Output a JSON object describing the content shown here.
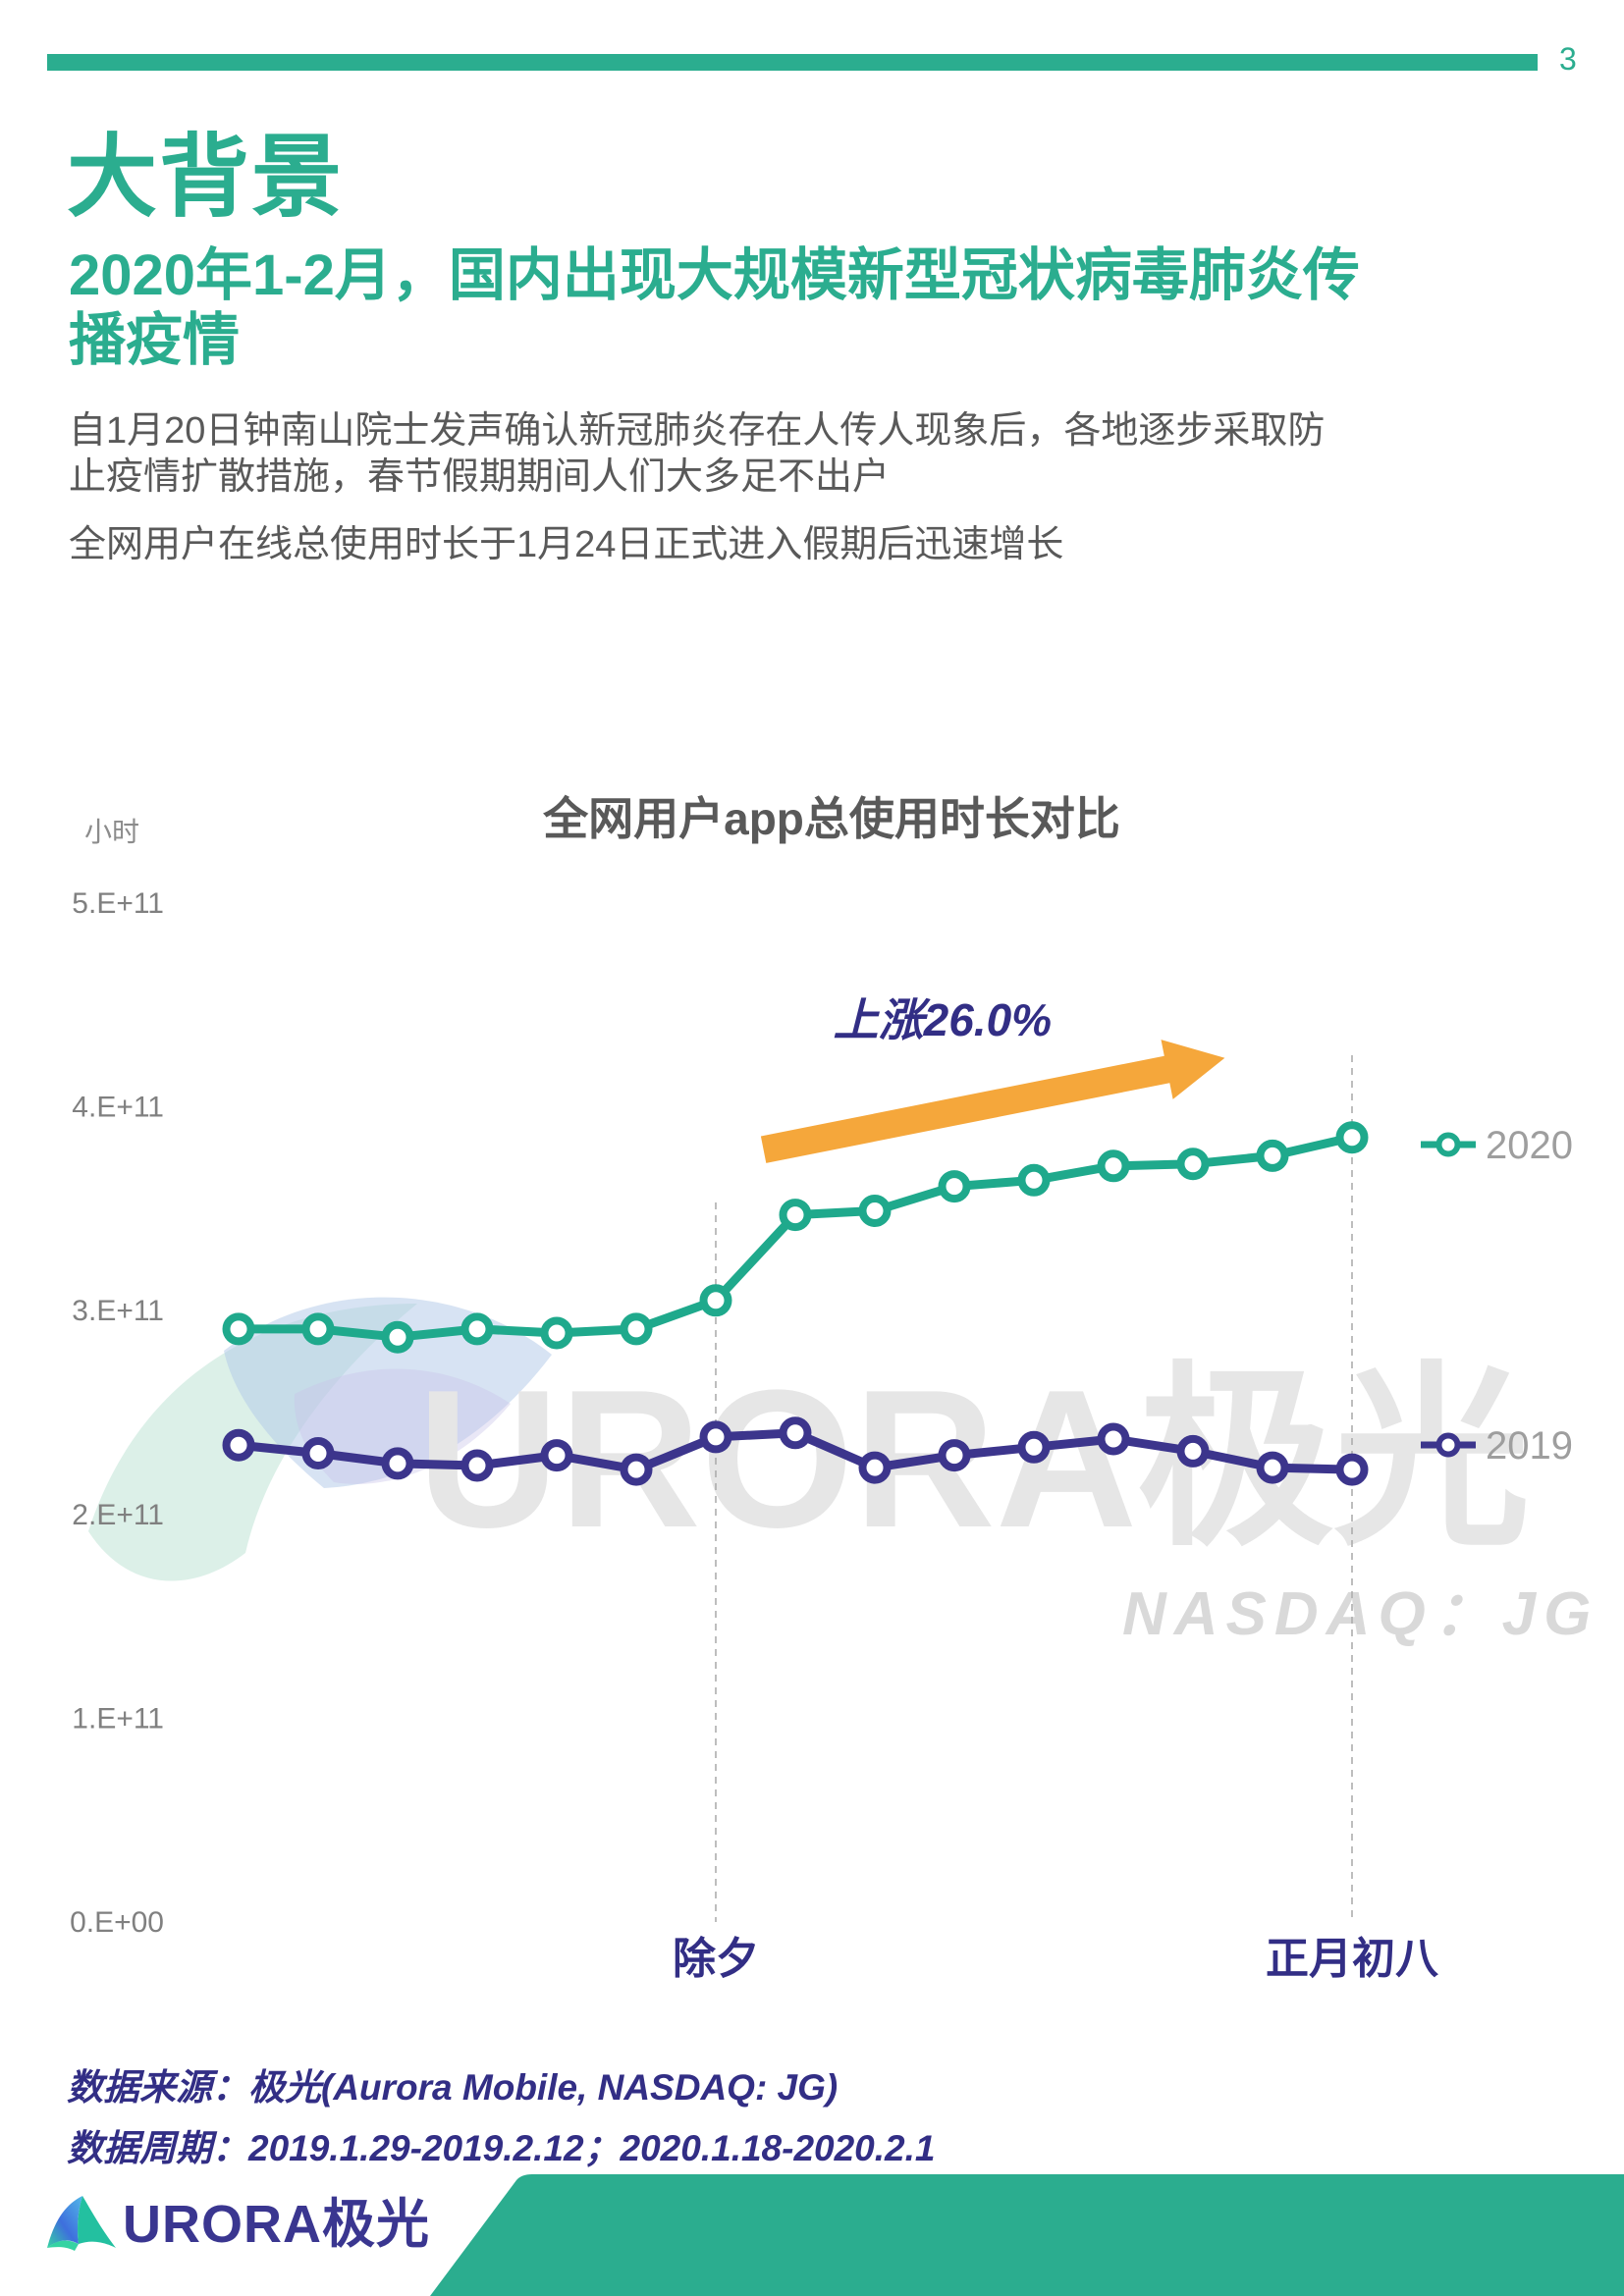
{
  "page": {
    "number": "3"
  },
  "header": {
    "title": "大背景",
    "subtitle": "2020年1-2月，国内出现大规模新型冠状病毒肺炎传\n播疫情"
  },
  "body": {
    "para1": "自1月20日钟南山院士发声确认新冠肺炎存在人传人现象后，各地逐步采取防\n止疫情扩散措施，春节假期期间人们大多足不出户",
    "para2": "全网用户在线总使用时长于1月24日正式进入假期后迅速增长"
  },
  "chart_data": {
    "type": "line",
    "title": "全网用户app总使用时长对比",
    "unit_label": "小时",
    "ylabel": "小时",
    "ylim": [
      0,
      500000000000
    ],
    "grid": false,
    "legend_position": "right",
    "y_ticks": [
      "0.E+00",
      "1.E+11",
      "2.E+11",
      "3.E+11",
      "4.E+11",
      "5.E+11"
    ],
    "x_count": 15,
    "x_axis_labels": [
      {
        "index": 6,
        "label": "除夕"
      },
      {
        "index": 14,
        "label": "正月初八"
      }
    ],
    "series": [
      {
        "name": "2020",
        "color": "#1FA98C",
        "values_e11": [
          2.91,
          2.91,
          2.87,
          2.91,
          2.89,
          2.91,
          3.05,
          3.47,
          3.49,
          3.61,
          3.64,
          3.71,
          3.72,
          3.76,
          3.85
        ]
      },
      {
        "name": "2019",
        "color": "#3C358C",
        "values_e11": [
          2.34,
          2.3,
          2.25,
          2.24,
          2.29,
          2.22,
          2.38,
          2.4,
          2.23,
          2.29,
          2.33,
          2.37,
          2.31,
          2.23,
          2.22
        ]
      }
    ],
    "annotation": {
      "label": "上涨26.0%",
      "label_color": "#322E85",
      "arrow_color": "#F5A73B",
      "arrow_from": {
        "index": 6.6,
        "value_e11": 3.79
      },
      "arrow_to": {
        "index": 12.4,
        "value_e11": 4.24
      },
      "label_pos": {
        "index": 8.85,
        "value_e11": 4.35
      }
    },
    "legend_text_color": "#9E9E9E"
  },
  "watermark": {
    "brand": "URORA极光",
    "ticker": "NASDAQ：JG"
  },
  "footer": {
    "source": "数据来源：极光(Aurora Mobile, NASDAQ: JG)",
    "period": "数据周期：2019.1.29-2019.2.12；2020.1.18-2020.2.1",
    "logo_text": "URORA极光"
  },
  "colors": {
    "teal": "#2BAD8F",
    "navy_text": "#322E85",
    "body_gray": "#595959",
    "axis_gray": "#808080"
  }
}
